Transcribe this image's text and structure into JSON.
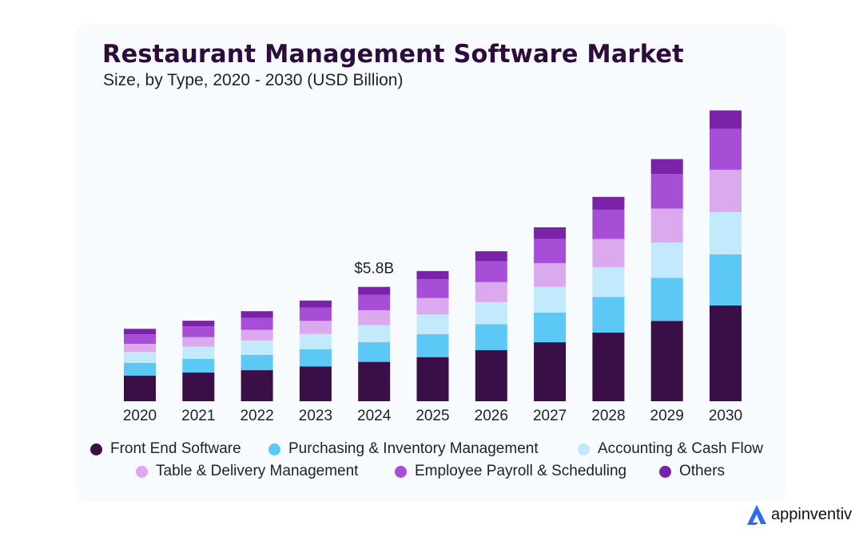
{
  "chart_data": {
    "type": "bar",
    "stacked": true,
    "title": "Restaurant Management Software Market",
    "subtitle": "Size, by Type, 2020 - 2030 (USD Billion)",
    "categories": [
      "2020",
      "2021",
      "2022",
      "2023",
      "2024",
      "2025",
      "2026",
      "2027",
      "2028",
      "2029",
      "2030"
    ],
    "series": [
      {
        "name": "Front End Software",
        "color": "#3a0f47",
        "values": [
          1.29,
          1.45,
          1.57,
          1.76,
          1.99,
          2.23,
          2.58,
          2.98,
          3.47,
          4.06,
          4.84
        ]
      },
      {
        "name": "Purchasing & Inventory Management",
        "color": "#5bc8f5",
        "values": [
          0.65,
          0.69,
          0.77,
          0.86,
          1.0,
          1.16,
          1.31,
          1.5,
          1.8,
          2.17,
          2.58
        ]
      },
      {
        "name": "Accounting & Cash Flow",
        "color": "#c3e9fc",
        "values": [
          0.56,
          0.62,
          0.73,
          0.78,
          0.86,
          1.0,
          1.12,
          1.3,
          1.51,
          1.79,
          2.14
        ]
      },
      {
        "name": "Table & Delivery Management",
        "color": "#dba9ee",
        "values": [
          0.4,
          0.48,
          0.54,
          0.66,
          0.75,
          0.83,
          1.01,
          1.2,
          1.42,
          1.72,
          2.14
        ]
      },
      {
        "name": "Employee Payroll & Scheduling",
        "color": "#a64fd6",
        "values": [
          0.48,
          0.54,
          0.6,
          0.67,
          0.78,
          0.94,
          1.05,
          1.22,
          1.48,
          1.75,
          2.06
        ]
      },
      {
        "name": "Others",
        "color": "#7a22a8",
        "values": [
          0.28,
          0.29,
          0.34,
          0.36,
          0.4,
          0.42,
          0.51,
          0.59,
          0.65,
          0.75,
          0.94
        ]
      }
    ],
    "annotations": [
      {
        "category": "2024",
        "text": "$5.8B"
      }
    ],
    "xlabel": "",
    "ylabel": "",
    "grid": false,
    "legend_position": "bottom"
  },
  "brand": {
    "name": "appinventiv",
    "color": "#2f6bf2"
  }
}
